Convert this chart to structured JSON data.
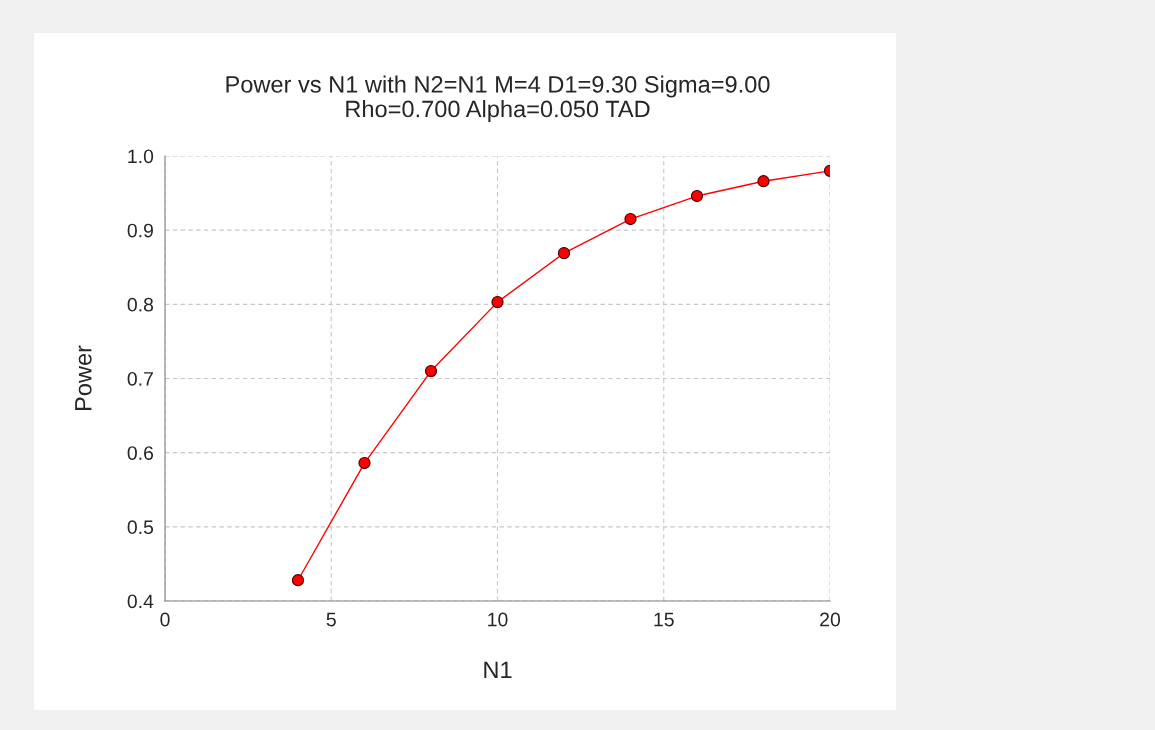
{
  "chart_data": {
    "type": "line",
    "title": "Power vs N1 with N2=N1 M=4 D1=9.30 Sigma=9.00\nRho=0.700 Alpha=0.050 TAD",
    "xlabel": "N1",
    "ylabel": "Power",
    "x": [
      4,
      6,
      8,
      10,
      12,
      14,
      16,
      18,
      20
    ],
    "series": [
      {
        "color": "#ff0000",
        "values": [
          0.428,
          0.586,
          0.71,
          0.803,
          0.869,
          0.915,
          0.946,
          0.966,
          0.98
        ]
      }
    ],
    "xlim": [
      0,
      20
    ],
    "xticks": [
      0,
      5,
      10,
      15,
      20
    ],
    "ylim": [
      0.4,
      1.0
    ],
    "yticks": [
      0.4,
      0.5,
      0.6,
      0.7,
      0.8,
      0.9,
      {
        "value": 1,
        "label": "1.0"
      }
    ],
    "grid": true,
    "marker": "circle",
    "line_style": "solid",
    "legend": false
  }
}
